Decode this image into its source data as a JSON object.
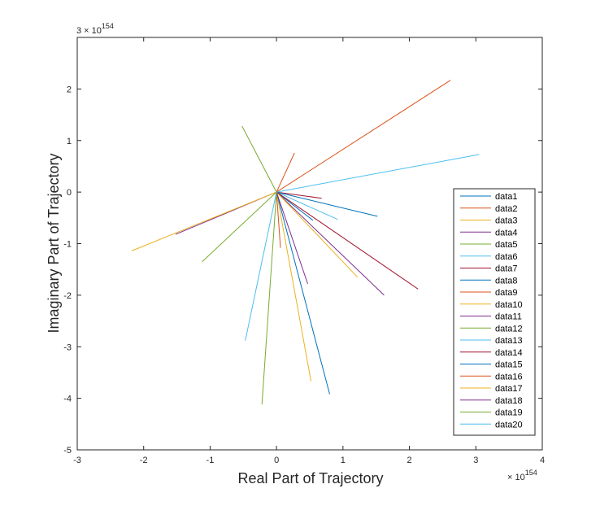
{
  "chart_data": {
    "type": "line",
    "xlabel": "Real Part of Trajectory",
    "ylabel": "Imaginary Part of Trajectory",
    "x_exponent": "× 10^154",
    "y_exponent": "3 × 10^154",
    "x_exponent_base": "× 10",
    "y_exponent_base": "3 × 10",
    "exponent_power": "154",
    "xlim": [
      -3,
      4
    ],
    "ylim": [
      -5,
      3
    ],
    "x_ticks": [
      "-3",
      "-2",
      "-1",
      "0",
      "1",
      "2",
      "3",
      "4"
    ],
    "y_ticks": [
      "-5",
      "-4",
      "-3",
      "-2",
      "-1",
      "0",
      "1",
      "2"
    ],
    "x_tick_values": [
      -3,
      -2,
      -1,
      0,
      1,
      2,
      3,
      4
    ],
    "y_tick_values": [
      -5,
      -4,
      -3,
      -2,
      -1,
      0,
      1,
      2
    ],
    "legend_position": "right",
    "series": [
      {
        "name": "data1",
        "color": "#0072BD",
        "x": [
          0,
          0.55
        ],
        "y": [
          0,
          -0.55
        ]
      },
      {
        "name": "data2",
        "color": "#D95319",
        "x": [
          0,
          0.06
        ],
        "y": [
          0,
          -1.08
        ]
      },
      {
        "name": "data3",
        "color": "#EDB120",
        "x": [
          0,
          0.52
        ],
        "y": [
          0,
          -3.67
        ]
      },
      {
        "name": "data4",
        "color": "#7E2F8E",
        "x": [
          0,
          1.62
        ],
        "y": [
          0,
          -2.0
        ]
      },
      {
        "name": "data5",
        "color": "#77AC30",
        "x": [
          0,
          -0.52
        ],
        "y": [
          0,
          1.28
        ]
      },
      {
        "name": "data6",
        "color": "#4DBEEE",
        "x": [
          0,
          0.92
        ],
        "y": [
          0,
          -0.53
        ]
      },
      {
        "name": "data7",
        "color": "#A2142F",
        "x": [
          0,
          0.68
        ],
        "y": [
          0,
          -0.12
        ]
      },
      {
        "name": "data8",
        "color": "#0072BD",
        "x": [
          0,
          0.8
        ],
        "y": [
          0,
          -3.92
        ]
      },
      {
        "name": "data9",
        "color": "#D95319",
        "x": [
          0,
          2.62
        ],
        "y": [
          0,
          2.17
        ]
      },
      {
        "name": "data10",
        "color": "#EDB120",
        "x": [
          0,
          1.22
        ],
        "y": [
          0,
          -1.65
        ]
      },
      {
        "name": "data11",
        "color": "#7E2F8E",
        "x": [
          0,
          -1.52
        ],
        "y": [
          0,
          -0.82
        ]
      },
      {
        "name": "data12",
        "color": "#77AC30",
        "x": [
          0,
          -1.12
        ],
        "y": [
          0,
          -1.35
        ]
      },
      {
        "name": "data13",
        "color": "#4DBEEE",
        "x": [
          0,
          -0.47
        ],
        "y": [
          0,
          -2.88
        ]
      },
      {
        "name": "data14",
        "color": "#A2142F",
        "x": [
          0,
          2.13
        ],
        "y": [
          0,
          -1.88
        ]
      },
      {
        "name": "data15",
        "color": "#0072BD",
        "x": [
          0,
          1.52
        ],
        "y": [
          0,
          -0.47
        ]
      },
      {
        "name": "data16",
        "color": "#D95319",
        "x": [
          0,
          0.27
        ],
        "y": [
          0,
          0.76
        ]
      },
      {
        "name": "data17",
        "color": "#EDB120",
        "x": [
          0,
          -2.18
        ],
        "y": [
          0,
          -1.14
        ]
      },
      {
        "name": "data18",
        "color": "#7E2F8E",
        "x": [
          0,
          0.47
        ],
        "y": [
          0,
          -1.78
        ]
      },
      {
        "name": "data19",
        "color": "#77AC30",
        "x": [
          0,
          -0.22
        ],
        "y": [
          0,
          -4.12
        ]
      },
      {
        "name": "data20",
        "color": "#4DBEEE",
        "x": [
          0,
          3.05
        ],
        "y": [
          0,
          0.73
        ]
      }
    ]
  }
}
